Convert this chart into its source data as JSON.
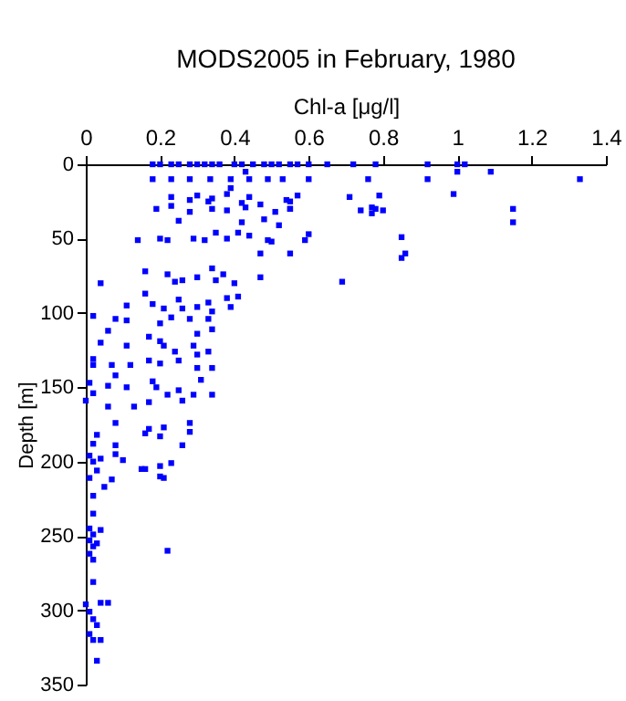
{
  "chart_data": {
    "type": "scatter",
    "title": "MODS2005 in February, 1980",
    "xlabel": "Chl-a [μg/l]",
    "ylabel": "Depth [m]",
    "xlim": [
      0,
      1.4
    ],
    "xticks": [
      0,
      0.2,
      0.4,
      0.6,
      0.8,
      1,
      1.2,
      1.4
    ],
    "ylim": [
      350,
      0
    ],
    "yticks": [
      0,
      50,
      100,
      150,
      200,
      250,
      300,
      350
    ],
    "grid": false,
    "marker": "square",
    "series": [
      {
        "color": "#0000ff",
        "x": [
          0.18,
          0.2,
          0.23,
          0.25,
          0.28,
          0.3,
          0.32,
          0.34,
          0.36,
          0.4,
          0.42,
          0.45,
          0.48,
          0.5,
          0.52,
          0.55,
          0.57,
          0.6,
          0.65,
          0.72,
          0.78,
          0.92,
          1.0,
          1.02,
          1.33,
          0.18,
          0.23,
          0.28,
          0.335,
          0.39,
          0.44,
          0.49,
          0.53,
          0.6,
          0.76,
          0.92,
          0.43,
          1.0,
          1.09,
          0.39,
          0.23,
          0.28,
          0.3,
          0.33,
          0.34,
          0.38,
          0.42,
          0.44,
          0.47,
          0.54,
          0.57,
          0.71,
          0.79,
          0.99,
          0.19,
          0.23,
          0.28,
          0.34,
          0.38,
          0.43,
          0.51,
          0.55,
          0.74,
          0.77,
          1.15,
          0.78,
          0.8,
          0.77,
          1.15,
          0.85,
          0.86,
          0.85,
          0.55,
          0.55,
          0.52,
          0.6,
          0.59,
          0.5,
          0.55,
          0.69,
          0.25,
          0.48,
          0.42,
          0.47,
          0.14,
          0.2,
          0.22,
          0.29,
          0.32,
          0.35,
          0.38,
          0.41,
          0.44,
          0.49,
          0.04,
          0.16,
          0.22,
          0.24,
          0.26,
          0.3,
          0.34,
          0.35,
          0.37,
          0.4,
          0.47,
          0.16,
          0.18,
          0.21,
          0.25,
          0.26,
          0.3,
          0.33,
          0.34,
          0.38,
          0.39,
          0.41,
          0.02,
          0.11,
          0.08,
          0.11,
          0.2,
          0.23,
          0.28,
          0.3,
          0.33,
          0.34,
          0.06,
          0.04,
          0.11,
          0.17,
          0.2,
          0.21,
          0.24,
          0.29,
          0.3,
          0.33,
          0.02,
          0.02,
          0.07,
          0.12,
          0.17,
          0.2,
          0.25,
          0.3,
          0.34,
          0.08,
          0.31,
          0.01,
          0.02,
          0,
          0.06,
          0.11,
          0.18,
          0.19,
          0.22,
          0.25,
          0.26,
          0.29,
          0.34,
          0.17,
          0.06,
          0.13,
          0.08,
          0.28,
          0.03,
          0.16,
          0.2,
          0.28,
          0.02,
          0.08,
          0.17,
          0.21,
          0.26,
          0.01,
          0.02,
          0.04,
          0.08,
          0.1,
          0.03,
          0.01,
          0.02,
          0.02,
          0.07,
          0.05,
          0.15,
          0.16,
          0.2,
          0.2,
          0.21,
          0.23,
          0.01,
          0.02,
          0.01,
          0.02,
          0.04,
          0.03,
          0.01,
          0.02,
          0.02,
          0.22,
          0,
          0.01,
          0.04,
          0.06,
          0.02,
          0.03,
          0.01,
          0.02,
          0.04,
          0.03
        ],
        "values": [
          0,
          0,
          0,
          0,
          0,
          0,
          0,
          0,
          0,
          0,
          0,
          0,
          0,
          0,
          0,
          0,
          0,
          0,
          0,
          0,
          0,
          0,
          0,
          0,
          10,
          10,
          10,
          10,
          10,
          10,
          10,
          10,
          10,
          10,
          10,
          10,
          5,
          5,
          5,
          16,
          22,
          24,
          21,
          25,
          23,
          20,
          26,
          22,
          27,
          24,
          21,
          22,
          21,
          20,
          30,
          28,
          32,
          30,
          31,
          29,
          32,
          30,
          31,
          29,
          30,
          30,
          31,
          33,
          39,
          49,
          60,
          63,
          25,
          30,
          41,
          47,
          51,
          52,
          60,
          79,
          38,
          37,
          39,
          60,
          51,
          50,
          51,
          50,
          51,
          46,
          50,
          46,
          48,
          51,
          80,
          72,
          74,
          79,
          78,
          76,
          70,
          78,
          74,
          80,
          76,
          87,
          94,
          97,
          91,
          97,
          96,
          93,
          99,
          90,
          96,
          89,
          102,
          95,
          104,
          105,
          107,
          103,
          104,
          114,
          104,
          111,
          112,
          120,
          122,
          116,
          119,
          122,
          126,
          122,
          128,
          126,
          131,
          135,
          135,
          135,
          132,
          134,
          132,
          137,
          137,
          142,
          145,
          147,
          154,
          159,
          149,
          150,
          146,
          150,
          155,
          152,
          159,
          155,
          155,
          160,
          163,
          163,
          174,
          174,
          182,
          181,
          183,
          180,
          188,
          189,
          178,
          177,
          189,
          196,
          200,
          198,
          195,
          199,
          206,
          211,
          223,
          235,
          212,
          217,
          205,
          205,
          210,
          203,
          211,
          201,
          245,
          249,
          253,
          257,
          246,
          255,
          262,
          266,
          281,
          260,
          296,
          301,
          295,
          295,
          306,
          310,
          316,
          320,
          320,
          334
        ]
      }
    ]
  }
}
